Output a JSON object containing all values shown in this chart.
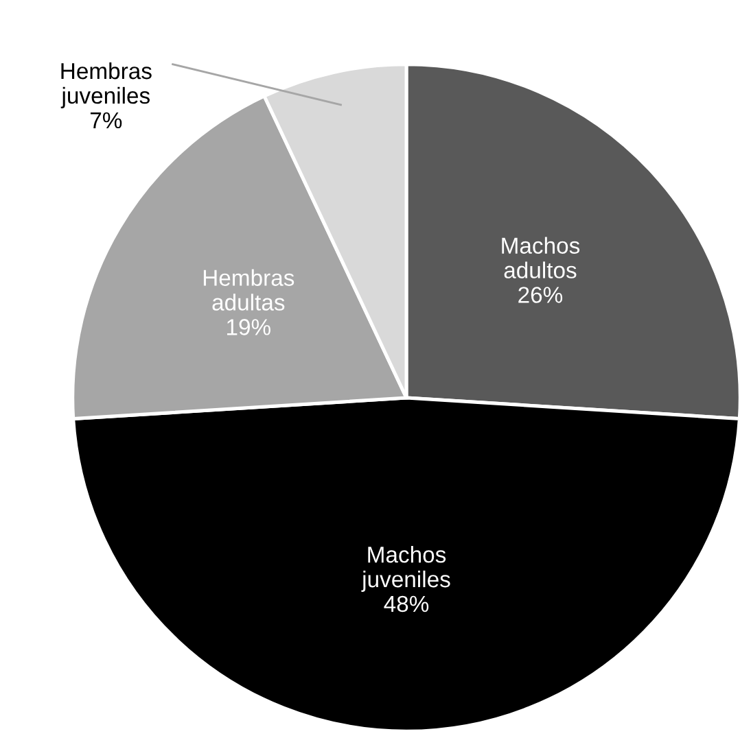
{
  "chart_data": {
    "type": "pie",
    "categories": [
      "Machos adultos",
      "Machos juveniles",
      "Hembras adultas",
      "Hembras juveniles"
    ],
    "values": [
      26,
      48,
      19,
      7
    ],
    "value_labels": [
      "26%",
      "48%",
      "19%",
      "7%"
    ],
    "colors": [
      "#595959",
      "#000000",
      "#a6a6a6",
      "#d9d9d9"
    ]
  }
}
